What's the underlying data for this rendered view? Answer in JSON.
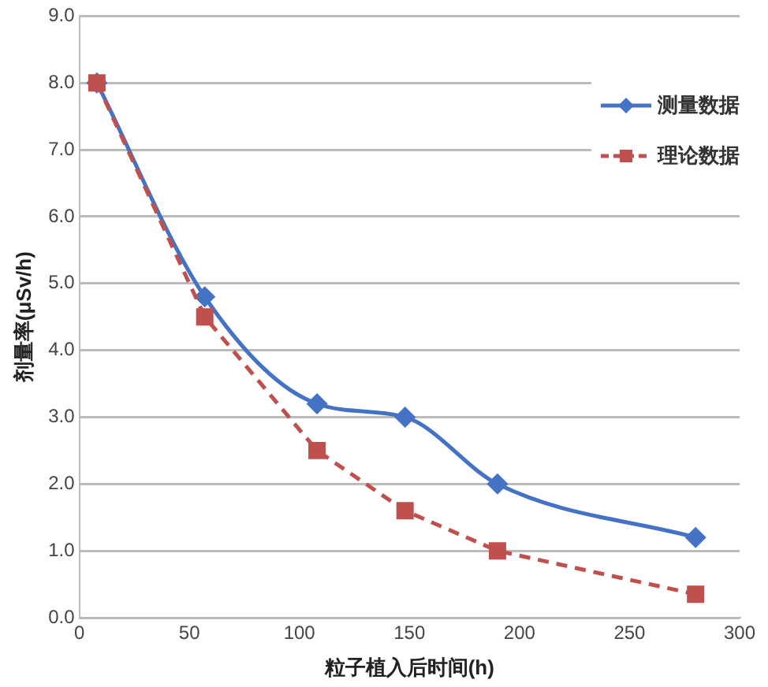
{
  "chart_data": {
    "type": "line",
    "xlabel": "粒子植入后时间(h)",
    "ylabel": "剂量率(μSv/h)",
    "xlim": [
      0,
      300
    ],
    "xticks": [
      0,
      50,
      100,
      150,
      200,
      250,
      300
    ],
    "ylim": [
      0,
      9
    ],
    "yticks": [
      {
        "value": 0,
        "label": "0.0"
      },
      {
        "value": 1,
        "label": "1.0"
      },
      {
        "value": 2,
        "label": "2.0"
      },
      {
        "value": 3,
        "label": "3.0"
      },
      {
        "value": 4,
        "label": "4.0"
      },
      {
        "value": 5,
        "label": "5.0"
      },
      {
        "value": 6,
        "label": "6.0"
      },
      {
        "value": 7,
        "label": "7.0"
      },
      {
        "value": 8,
        "label": "8.0"
      },
      {
        "value": 9,
        "label": "9.0"
      }
    ],
    "grid": "y",
    "legend": "right",
    "series": [
      {
        "name": "测量数据",
        "color": "#4472c4",
        "marker": "diamond",
        "line_style": "solid",
        "x": [
          8,
          57,
          108,
          148,
          190,
          280
        ],
        "values": [
          8.0,
          4.8,
          3.2,
          3.0,
          2.0,
          1.2
        ]
      },
      {
        "name": "理论数据",
        "color": "#c0504d",
        "marker": "square",
        "line_style": "dashed",
        "x": [
          8,
          57,
          108,
          148,
          190,
          280
        ],
        "values": [
          8.0,
          4.5,
          2.5,
          1.6,
          1.0,
          0.35
        ]
      }
    ]
  }
}
